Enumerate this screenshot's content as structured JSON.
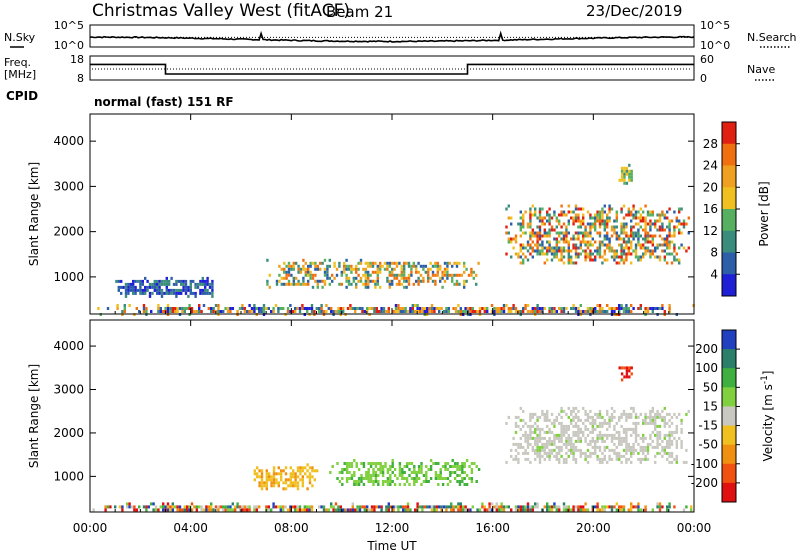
{
  "header": {
    "title": "Christmas Valley West (fitACF)",
    "beam": "Beam 21",
    "date": "23/Dec/2019"
  },
  "left_labels": {
    "nsky": "N.Sky",
    "freq_line1": "Freq.",
    "freq_line2": "[MHz]",
    "cpid": "CPID"
  },
  "right_labels": {
    "nsearch": "N.Search",
    "nave": "Nave"
  },
  "noise_panel": {
    "ytick_top": "10^5",
    "ytick_bottom": "10^0",
    "rtick_top": "10^5",
    "rtick_bottom": "10^0"
  },
  "freq_panel": {
    "ytick_top": "18",
    "ytick_bottom": "8",
    "rtick_top": "60",
    "rtick_bottom": "0"
  },
  "cpid_text": "normal (fast) 151 RF",
  "power_panel": {
    "ylabel": "Slant Range [km]",
    "yticks": [
      "1000",
      "2000",
      "3000",
      "4000"
    ],
    "colorbar_label": "Power [dB]",
    "colorbar_ticks": [
      "4",
      "8",
      "12",
      "16",
      "20",
      "24",
      "28"
    ],
    "colorbar_colors": [
      "#1f1fd6",
      "#2c5fa8",
      "#3a8c7c",
      "#56b060",
      "#f0c020",
      "#f0a020",
      "#f07010",
      "#e02010"
    ]
  },
  "velocity_panel": {
    "ylabel": "Slant Range [km]",
    "yticks": [
      "1000",
      "2000",
      "3000",
      "4000"
    ],
    "colorbar_label": "Velocity [m s^-1]",
    "colorbar_ticks": [
      "200",
      "100",
      "50",
      "15",
      "-15",
      "-50",
      "-100",
      "-200"
    ],
    "colorbar_colors": [
      "#2040c0",
      "#2a7f6a",
      "#3fb040",
      "#80d040",
      "#c8c8c0",
      "#f0c020",
      "#f09010",
      "#f05010",
      "#e01010"
    ]
  },
  "xaxis": {
    "xlabel": "Time UT",
    "ticks": [
      "00:00",
      "04:00",
      "08:00",
      "12:00",
      "16:00",
      "20:00",
      "00:00"
    ]
  },
  "chart_data": {
    "type": "heatmap",
    "title": "Christmas Valley West (fitACF)",
    "xlabel": "Time UT",
    "ylabel": "Slant Range [km]",
    "xlim_hours": [
      0,
      24
    ],
    "ylim_km": [
      180,
      4600
    ],
    "frequency_mhz_steps": [
      {
        "from_h": 0,
        "to_h": 3,
        "value": 14.5
      },
      {
        "from_h": 3,
        "to_h": 15,
        "value": 10.5
      },
      {
        "from_h": 15,
        "to_h": 24,
        "value": 14.5
      }
    ],
    "power_regions": [
      {
        "t0": 0.0,
        "t1": 24.0,
        "r0": 200,
        "r1": 400,
        "level": "mixed"
      },
      {
        "t0": 7.0,
        "t1": 15.5,
        "r0": 800,
        "r1": 1400,
        "level": "mid-high"
      },
      {
        "t0": 16.5,
        "t1": 23.8,
        "r0": 1300,
        "r1": 2600,
        "level": "high"
      },
      {
        "t0": 1.0,
        "t1": 5.0,
        "r0": 600,
        "r1": 1000,
        "level": "low"
      },
      {
        "t0": 21.0,
        "t1": 21.5,
        "r0": 3100,
        "r1": 3500,
        "level": "mid"
      }
    ],
    "velocity_regions": [
      {
        "t0": 0.0,
        "t1": 24.0,
        "r0": 200,
        "r1": 400,
        "v": "mixed"
      },
      {
        "t0": 6.5,
        "t1": 9.0,
        "r0": 700,
        "r1": 1300,
        "v": -40
      },
      {
        "t0": 9.5,
        "t1": 15.5,
        "r0": 800,
        "r1": 1400,
        "v": 40
      },
      {
        "t0": 16.5,
        "t1": 23.8,
        "r0": 1300,
        "r1": 2600,
        "v": 0
      },
      {
        "t0": 21.0,
        "t1": 21.5,
        "r0": 3200,
        "r1": 3600,
        "v": -200
      }
    ]
  }
}
